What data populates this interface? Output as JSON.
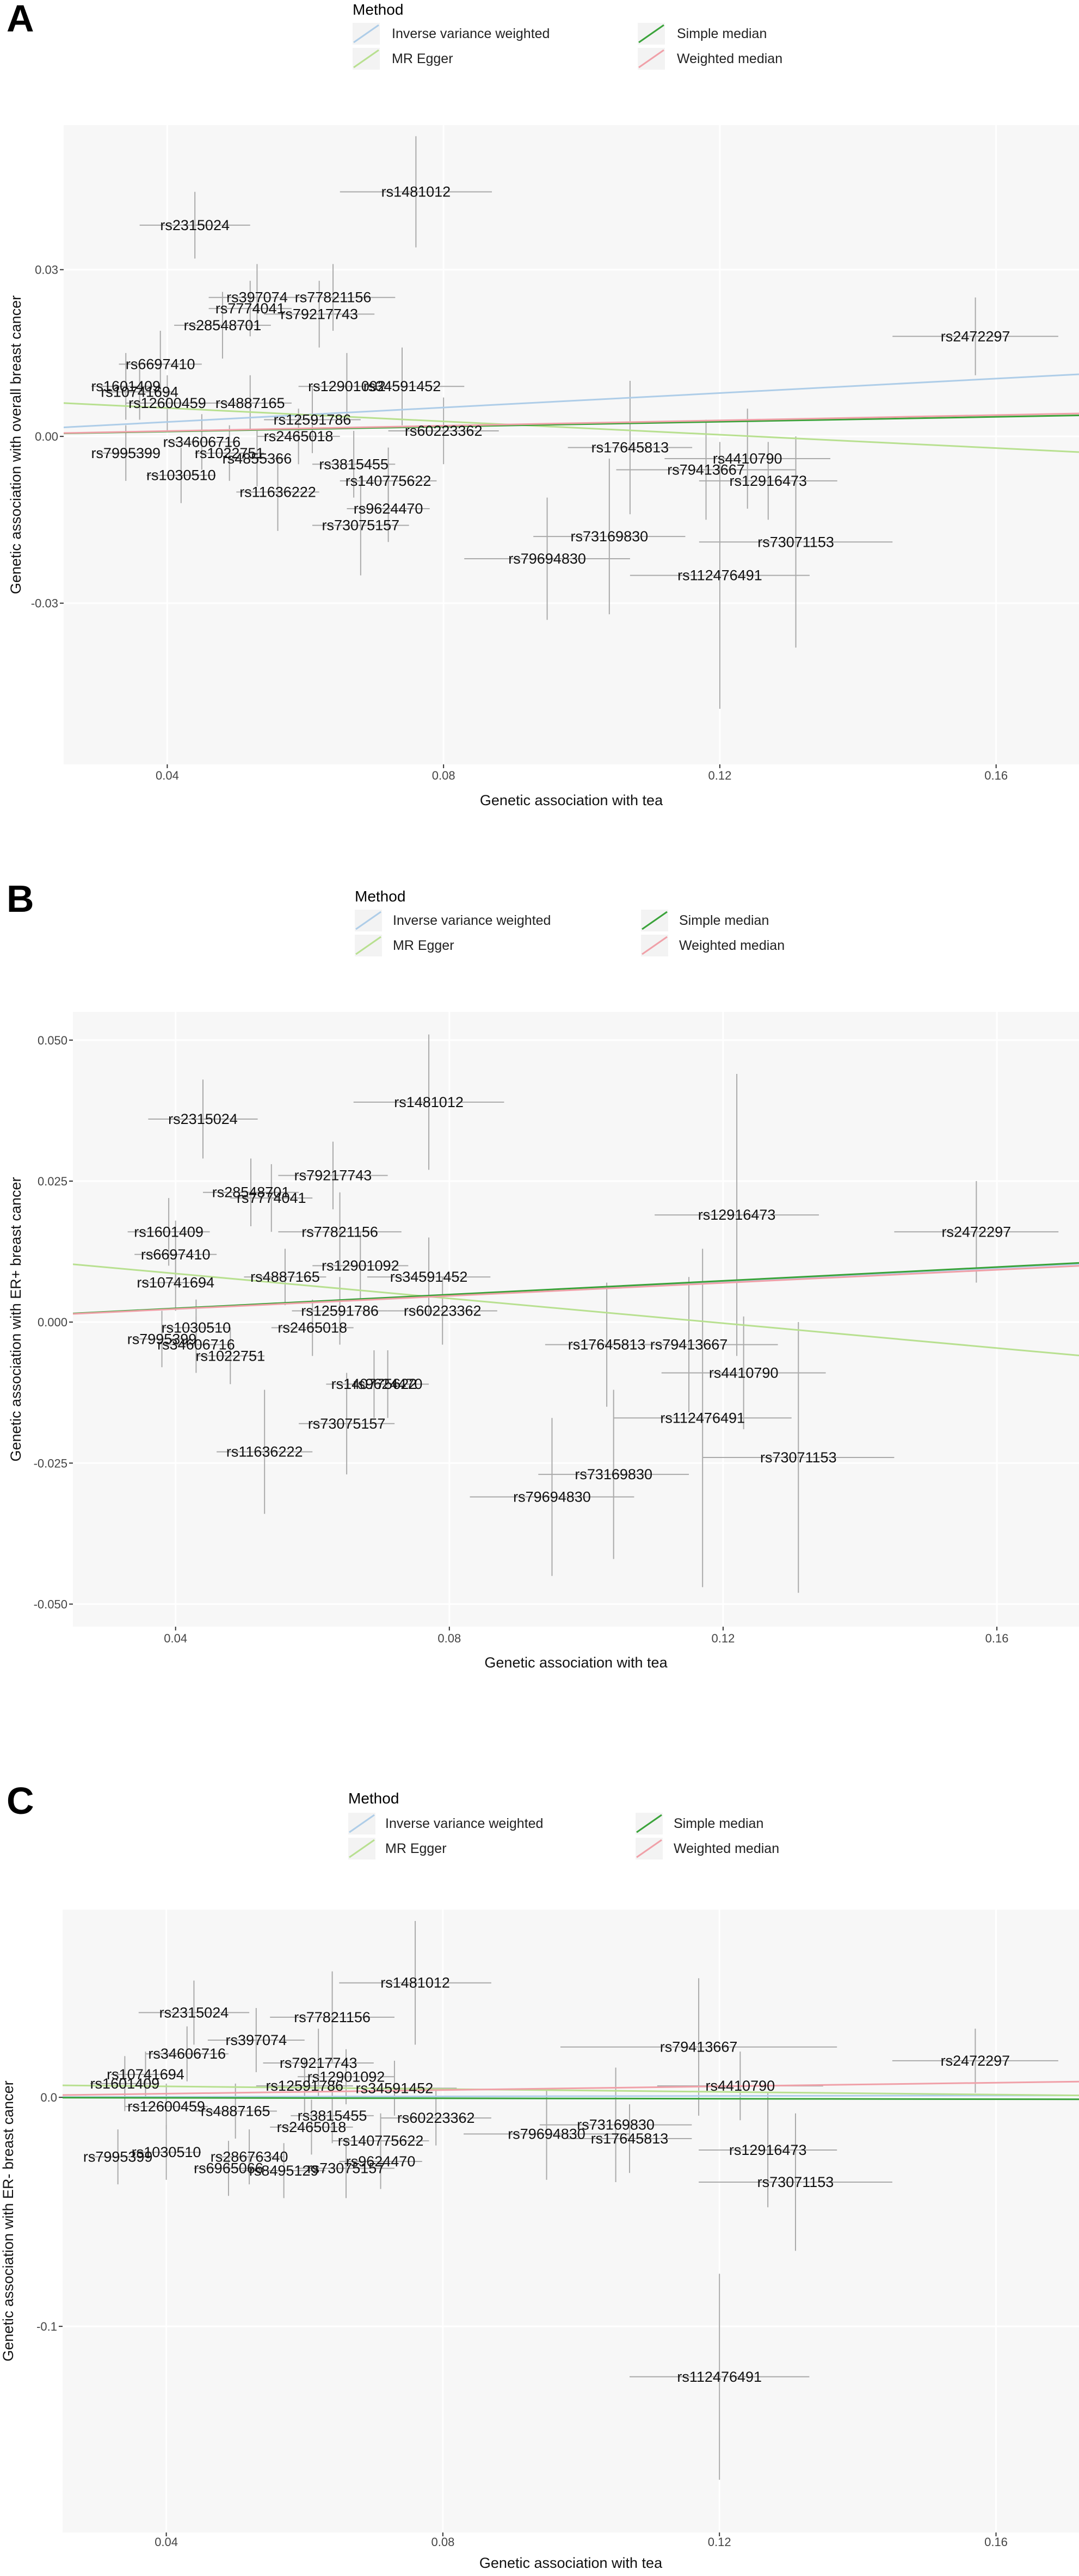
{
  "legend": {
    "title": "Method",
    "entries": [
      {
        "label": "Inverse variance weighted",
        "color": "#aecde8"
      },
      {
        "label": "MR Egger",
        "color": "#b8e090"
      },
      {
        "label": "Simple median",
        "color": "#3aa33a"
      },
      {
        "label": "Weighted median",
        "color": "#f0a0a8"
      }
    ]
  },
  "chart_data": [
    {
      "panel": "A",
      "type": "scatter",
      "xlabel": "Genetic association with tea",
      "ylabel": "Genetic association with overall breast cancer",
      "xlim": [
        0.025,
        0.172
      ],
      "ylim": [
        -0.059,
        0.056
      ],
      "xticks": [
        0.04,
        0.08,
        0.12,
        0.16
      ],
      "xtick_labels": [
        "0.04",
        "0.08",
        "0.12",
        "0.16"
      ],
      "yticks": [
        0.03,
        0.0,
        -0.03
      ],
      "ytick_labels": [
        "0.03",
        "0.00",
        "-0.03"
      ],
      "lines": [
        {
          "method": "Inverse variance weighted",
          "slope": 0.065
        },
        {
          "method": "MR Egger",
          "intercept": 0.0075,
          "slope": -0.06
        },
        {
          "method": "Simple median",
          "slope": 0.022
        },
        {
          "method": "Weighted median",
          "slope": 0.024
        }
      ],
      "points": [
        {
          "snp": "rs1481012",
          "x": 0.076,
          "y": 0.044,
          "xse": 0.011,
          "yse": 0.01
        },
        {
          "snp": "rs2315024",
          "x": 0.044,
          "y": 0.038,
          "xse": 0.008,
          "yse": 0.006
        },
        {
          "snp": "rs397074",
          "x": 0.053,
          "y": 0.025,
          "xse": 0.007,
          "yse": 0.006
        },
        {
          "snp": "rs77821156",
          "x": 0.064,
          "y": 0.025,
          "xse": 0.009,
          "yse": 0.006
        },
        {
          "snp": "rs7774041",
          "x": 0.052,
          "y": 0.023,
          "xse": 0.006,
          "yse": 0.005
        },
        {
          "snp": "rs79217743",
          "x": 0.062,
          "y": 0.022,
          "xse": 0.008,
          "yse": 0.006
        },
        {
          "snp": "rs28548701",
          "x": 0.048,
          "y": 0.02,
          "xse": 0.007,
          "yse": 0.006
        },
        {
          "snp": "rs2472297",
          "x": 0.157,
          "y": 0.018,
          "xse": 0.012,
          "yse": 0.007
        },
        {
          "snp": "rs6697410",
          "x": 0.039,
          "y": 0.013,
          "xse": 0.006,
          "yse": 0.006
        },
        {
          "snp": "rs12901092",
          "x": 0.066,
          "y": 0.009,
          "xse": 0.007,
          "yse": 0.006
        },
        {
          "snp": "rs34591452",
          "x": 0.074,
          "y": 0.009,
          "xse": 0.009,
          "yse": 0.007
        },
        {
          "snp": "rs1601409",
          "x": 0.034,
          "y": 0.009,
          "xse": 0.005,
          "yse": 0.006
        },
        {
          "snp": "rs10741694",
          "x": 0.036,
          "y": 0.008,
          "xse": 0.005,
          "yse": 0.005
        },
        {
          "snp": "rs4887165",
          "x": 0.052,
          "y": 0.006,
          "xse": 0.006,
          "yse": 0.005
        },
        {
          "snp": "rs12600459",
          "x": 0.04,
          "y": 0.006,
          "xse": 0.006,
          "yse": 0.005
        },
        {
          "snp": "rs12591786",
          "x": 0.061,
          "y": 0.003,
          "xse": 0.007,
          "yse": 0.006
        },
        {
          "snp": "rs60223362",
          "x": 0.08,
          "y": 0.001,
          "xse": 0.008,
          "yse": 0.006
        },
        {
          "snp": "rs17645813",
          "x": 0.107,
          "y": -0.002,
          "xse": 0.009,
          "yse": 0.012
        },
        {
          "snp": "rs4410790",
          "x": 0.124,
          "y": -0.004,
          "xse": 0.012,
          "yse": 0.009
        },
        {
          "snp": "rs79413667",
          "x": 0.118,
          "y": -0.006,
          "xse": 0.013,
          "yse": 0.009
        },
        {
          "snp": "rs12916473",
          "x": 0.127,
          "y": -0.008,
          "xse": 0.01,
          "yse": 0.007
        },
        {
          "snp": "rs2465018",
          "x": 0.059,
          "y": 0.0,
          "xse": 0.006,
          "yse": 0.005
        },
        {
          "snp": "rs34606716",
          "x": 0.045,
          "y": -0.001,
          "xse": 0.005,
          "yse": 0.005
        },
        {
          "snp": "rs1022751",
          "x": 0.049,
          "y": -0.003,
          "xse": 0.005,
          "yse": 0.005
        },
        {
          "snp": "rs7995399",
          "x": 0.034,
          "y": -0.003,
          "xse": 0.004,
          "yse": 0.005
        },
        {
          "snp": "rs4855366",
          "x": 0.053,
          "y": -0.004,
          "xse": 0.004,
          "yse": 0.005
        },
        {
          "snp": "rs3815455",
          "x": 0.067,
          "y": -0.005,
          "xse": 0.006,
          "yse": 0.006
        },
        {
          "snp": "rs1030510",
          "x": 0.042,
          "y": -0.007,
          "xse": 0.005,
          "yse": 0.005
        },
        {
          "snp": "rs140775622",
          "x": 0.072,
          "y": -0.008,
          "xse": 0.007,
          "yse": 0.006
        },
        {
          "snp": "rs11636222",
          "x": 0.056,
          "y": -0.01,
          "xse": 0.006,
          "yse": 0.007
        },
        {
          "snp": "rs9624470",
          "x": 0.072,
          "y": -0.013,
          "xse": 0.006,
          "yse": 0.006
        },
        {
          "snp": "rs73075157",
          "x": 0.068,
          "y": -0.016,
          "xse": 0.007,
          "yse": 0.009
        },
        {
          "snp": "rs73169830",
          "x": 0.104,
          "y": -0.018,
          "xse": 0.011,
          "yse": 0.014
        },
        {
          "snp": "rs73071153",
          "x": 0.131,
          "y": -0.019,
          "xse": 0.014,
          "yse": 0.019
        },
        {
          "snp": "rs79694830",
          "x": 0.095,
          "y": -0.022,
          "xse": 0.012,
          "yse": 0.011
        },
        {
          "snp": "rs112476491",
          "x": 0.12,
          "y": -0.025,
          "xse": 0.013,
          "yse": 0.024
        }
      ]
    },
    {
      "panel": "B",
      "type": "scatter",
      "xlabel": "Genetic association with tea",
      "ylabel": "Genetic association with ER+ breast cancer",
      "xlim": [
        0.025,
        0.172
      ],
      "ylim": [
        -0.054,
        0.055
      ],
      "xticks": [
        0.04,
        0.08,
        0.12,
        0.16
      ],
      "xtick_labels": [
        "0.04",
        "0.08",
        "0.12",
        "0.16"
      ],
      "yticks": [
        0.05,
        0.025,
        0.0,
        -0.025,
        -0.05
      ],
      "ytick_labels": [
        "0.050",
        "0.025",
        "0.000",
        "-0.025",
        "-0.050"
      ],
      "lines": [
        {
          "method": "Inverse variance weighted",
          "slope": 0.06
        },
        {
          "method": "MR Egger",
          "intercept": 0.013,
          "slope": -0.11
        },
        {
          "method": "Simple median",
          "slope": 0.061
        },
        {
          "method": "Weighted median",
          "slope": 0.058
        }
      ],
      "points": [
        {
          "snp": "rs1481012",
          "x": 0.077,
          "y": 0.039,
          "xse": 0.011,
          "yse": 0.012
        },
        {
          "snp": "rs2315024",
          "x": 0.044,
          "y": 0.036,
          "xse": 0.008,
          "yse": 0.007
        },
        {
          "snp": "rs79217743",
          "x": 0.063,
          "y": 0.026,
          "xse": 0.008,
          "yse": 0.006
        },
        {
          "snp": "rs28548701",
          "x": 0.051,
          "y": 0.023,
          "xse": 0.007,
          "yse": 0.006
        },
        {
          "snp": "rs7774041",
          "x": 0.054,
          "y": 0.022,
          "xse": 0.006,
          "yse": 0.006
        },
        {
          "snp": "rs2472297",
          "x": 0.157,
          "y": 0.016,
          "xse": 0.012,
          "yse": 0.009
        },
        {
          "snp": "rs12916473",
          "x": 0.122,
          "y": 0.019,
          "xse": 0.012,
          "yse": 0.025
        },
        {
          "snp": "rs77821156",
          "x": 0.064,
          "y": 0.016,
          "xse": 0.009,
          "yse": 0.007
        },
        {
          "snp": "rs1601409",
          "x": 0.039,
          "y": 0.016,
          "xse": 0.006,
          "yse": 0.006
        },
        {
          "snp": "rs6697410",
          "x": 0.04,
          "y": 0.012,
          "xse": 0.006,
          "yse": 0.006
        },
        {
          "snp": "rs12901092",
          "x": 0.067,
          "y": 0.01,
          "xse": 0.007,
          "yse": 0.006
        },
        {
          "snp": "rs34591452",
          "x": 0.077,
          "y": 0.008,
          "xse": 0.009,
          "yse": 0.007
        },
        {
          "snp": "rs10741694",
          "x": 0.04,
          "y": 0.007,
          "xse": 0.005,
          "yse": 0.005
        },
        {
          "snp": "rs4887165",
          "x": 0.056,
          "y": 0.008,
          "xse": 0.006,
          "yse": 0.005
        },
        {
          "snp": "rs12591786",
          "x": 0.064,
          "y": 0.002,
          "xse": 0.007,
          "yse": 0.006
        },
        {
          "snp": "rs60223362",
          "x": 0.079,
          "y": 0.002,
          "xse": 0.008,
          "yse": 0.006
        },
        {
          "snp": "rs2465018",
          "x": 0.06,
          "y": -0.001,
          "xse": 0.006,
          "yse": 0.005
        },
        {
          "snp": "rs1030510",
          "x": 0.043,
          "y": -0.001,
          "xse": 0.005,
          "yse": 0.005
        },
        {
          "snp": "rs7995399",
          "x": 0.038,
          "y": -0.003,
          "xse": 0.004,
          "yse": 0.005
        },
        {
          "snp": "rs34606716",
          "x": 0.043,
          "y": -0.004,
          "xse": 0.005,
          "yse": 0.005
        },
        {
          "snp": "rs1022751",
          "x": 0.048,
          "y": -0.006,
          "xse": 0.005,
          "yse": 0.005
        },
        {
          "snp": "rs17645813",
          "x": 0.103,
          "y": -0.004,
          "xse": 0.009,
          "yse": 0.011
        },
        {
          "snp": "rs79413667",
          "x": 0.115,
          "y": -0.004,
          "xse": 0.013,
          "yse": 0.012
        },
        {
          "snp": "rs9624470",
          "x": 0.071,
          "y": -0.011,
          "xse": 0.006,
          "yse": 0.006
        },
        {
          "snp": "rs140775622",
          "x": 0.069,
          "y": -0.011,
          "xse": 0.007,
          "yse": 0.006
        },
        {
          "snp": "rs4410790",
          "x": 0.123,
          "y": -0.009,
          "xse": 0.012,
          "yse": 0.01
        },
        {
          "snp": "rs73075157",
          "x": 0.065,
          "y": -0.018,
          "xse": 0.007,
          "yse": 0.009
        },
        {
          "snp": "rs112476491",
          "x": 0.117,
          "y": -0.017,
          "xse": 0.013,
          "yse": 0.03
        },
        {
          "snp": "rs11636222",
          "x": 0.053,
          "y": -0.023,
          "xse": 0.007,
          "yse": 0.011
        },
        {
          "snp": "rs73071153",
          "x": 0.131,
          "y": -0.024,
          "xse": 0.014,
          "yse": 0.024
        },
        {
          "snp": "rs73169830",
          "x": 0.104,
          "y": -0.027,
          "xse": 0.011,
          "yse": 0.015
        },
        {
          "snp": "rs79694830",
          "x": 0.095,
          "y": -0.031,
          "xse": 0.012,
          "yse": 0.014
        }
      ]
    },
    {
      "panel": "C",
      "type": "scatter",
      "xlabel": "Genetic association with tea",
      "ylabel": "Genetic association with ER- breast cancer",
      "xlim": [
        0.025,
        0.172
      ],
      "ylim": [
        -0.19,
        0.082
      ],
      "xticks": [
        0.04,
        0.08,
        0.12,
        0.16
      ],
      "xtick_labels": [
        "0.04",
        "0.08",
        "0.12",
        "0.16"
      ],
      "yticks": [
        0.0,
        -0.1
      ],
      "ytick_labels": [
        "0.0",
        "-0.1"
      ],
      "lines": [
        {
          "method": "Inverse variance weighted",
          "slope": 0.005
        },
        {
          "method": "MR Egger",
          "intercept": 0.006,
          "slope": -0.03
        },
        {
          "method": "Simple median",
          "slope": -0.005
        },
        {
          "method": "Weighted median",
          "slope": 0.04
        }
      ],
      "points": [
        {
          "snp": "rs1481012",
          "x": 0.076,
          "y": 0.05,
          "xse": 0.011,
          "yse": 0.027
        },
        {
          "snp": "rs2315024",
          "x": 0.044,
          "y": 0.037,
          "xse": 0.008,
          "yse": 0.014
        },
        {
          "snp": "rs77821156",
          "x": 0.064,
          "y": 0.035,
          "xse": 0.009,
          "yse": 0.02
        },
        {
          "snp": "rs397074",
          "x": 0.053,
          "y": 0.025,
          "xse": 0.007,
          "yse": 0.014
        },
        {
          "snp": "rs79217743",
          "x": 0.062,
          "y": 0.015,
          "xse": 0.008,
          "yse": 0.015
        },
        {
          "snp": "rs34606716",
          "x": 0.043,
          "y": 0.019,
          "xse": 0.006,
          "yse": 0.012
        },
        {
          "snp": "rs12901092",
          "x": 0.066,
          "y": 0.009,
          "xse": 0.007,
          "yse": 0.012
        },
        {
          "snp": "rs10741694",
          "x": 0.037,
          "y": 0.01,
          "xse": 0.005,
          "yse": 0.01
        },
        {
          "snp": "rs1601409",
          "x": 0.034,
          "y": 0.006,
          "xse": 0.005,
          "yse": 0.012
        },
        {
          "snp": "rs12591786",
          "x": 0.06,
          "y": 0.005,
          "xse": 0.007,
          "yse": 0.012
        },
        {
          "snp": "rs34591452",
          "x": 0.073,
          "y": 0.004,
          "xse": 0.009,
          "yse": 0.012
        },
        {
          "snp": "rs79413667",
          "x": 0.117,
          "y": 0.022,
          "xse": 0.02,
          "yse": 0.03
        },
        {
          "snp": "rs2472297",
          "x": 0.157,
          "y": 0.016,
          "xse": 0.012,
          "yse": 0.014
        },
        {
          "snp": "rs4410790",
          "x": 0.123,
          "y": 0.005,
          "xse": 0.012,
          "yse": 0.015
        },
        {
          "snp": "rs12600459",
          "x": 0.04,
          "y": -0.004,
          "xse": 0.006,
          "yse": 0.01
        },
        {
          "snp": "rs4887165",
          "x": 0.05,
          "y": -0.006,
          "xse": 0.006,
          "yse": 0.012
        },
        {
          "snp": "rs3815455",
          "x": 0.064,
          "y": -0.008,
          "xse": 0.006,
          "yse": 0.012
        },
        {
          "snp": "rs60223362",
          "x": 0.079,
          "y": -0.009,
          "xse": 0.008,
          "yse": 0.012
        },
        {
          "snp": "rs2465018",
          "x": 0.061,
          "y": -0.013,
          "xse": 0.006,
          "yse": 0.012
        },
        {
          "snp": "rs79694830",
          "x": 0.095,
          "y": -0.016,
          "xse": 0.012,
          "yse": 0.02
        },
        {
          "snp": "rs73169830",
          "x": 0.105,
          "y": -0.012,
          "xse": 0.011,
          "yse": 0.025
        },
        {
          "snp": "rs17645813",
          "x": 0.107,
          "y": -0.018,
          "xse": 0.009,
          "yse": 0.015
        },
        {
          "snp": "rs12916473",
          "x": 0.127,
          "y": -0.023,
          "xse": 0.01,
          "yse": 0.025
        },
        {
          "snp": "rs140775622",
          "x": 0.071,
          "y": -0.019,
          "xse": 0.007,
          "yse": 0.012
        },
        {
          "snp": "rs7995399",
          "x": 0.033,
          "y": -0.026,
          "xse": 0.004,
          "yse": 0.012
        },
        {
          "snp": "rs1030510",
          "x": 0.04,
          "y": -0.024,
          "xse": 0.005,
          "yse": 0.012
        },
        {
          "snp": "rs28676340",
          "x": 0.052,
          "y": -0.026,
          "xse": 0.005,
          "yse": 0.012
        },
        {
          "snp": "rs6965066",
          "x": 0.049,
          "y": -0.031,
          "xse": 0.005,
          "yse": 0.012
        },
        {
          "snp": "rs9624470",
          "x": 0.071,
          "y": -0.028,
          "xse": 0.006,
          "yse": 0.012
        },
        {
          "snp": "rs73075157",
          "x": 0.066,
          "y": -0.031,
          "xse": 0.007,
          "yse": 0.013
        },
        {
          "snp": "rs8495129",
          "x": 0.057,
          "y": -0.032,
          "xse": 0.006,
          "yse": 0.012
        },
        {
          "snp": "rs73071153",
          "x": 0.131,
          "y": -0.037,
          "xse": 0.014,
          "yse": 0.03
        },
        {
          "snp": "rs112476491",
          "x": 0.12,
          "y": -0.122,
          "xse": 0.013,
          "yse": 0.045
        }
      ]
    }
  ]
}
